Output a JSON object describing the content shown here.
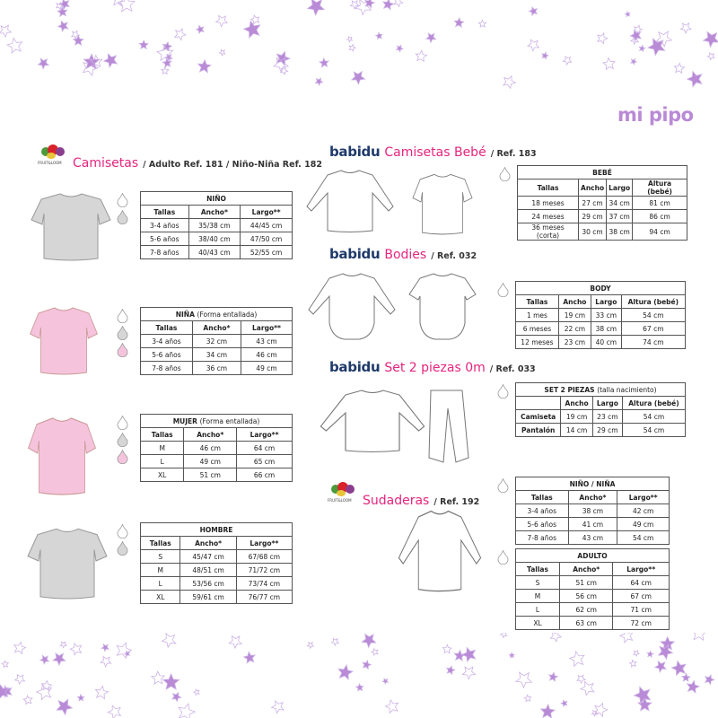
{
  "logo": "mi pipo",
  "colors": {
    "brand_pink": "#e6247e",
    "babidu_navy": "#1f3a6b",
    "star_purple": "#b98ad6",
    "shirt_gray": "#d6d6d6",
    "shirt_pink": "#f5c4dc"
  },
  "sections": {
    "camisetas": {
      "brand": "FRUIT&LOOM",
      "title": "Camisetas",
      "ref": "/ Adulto Ref. 181 / Niño-Niña Ref. 182"
    },
    "camisetas_bebe": {
      "brand": "babidu",
      "title": "Camisetas Bebé",
      "ref": "/ Ref. 183"
    },
    "bodies": {
      "brand": "babidu",
      "title": "Bodies",
      "ref": "/ Ref. 032"
    },
    "set": {
      "brand": "babidu",
      "title": "Set 2 piezas 0m",
      "ref": "/ Ref. 033"
    },
    "sudaderas": {
      "brand": "FRUIT&LOOM",
      "title": "Sudaderas",
      "ref": "/ Ref. 192"
    }
  },
  "tables": [
    {
      "id": "nino",
      "title": "NIÑO",
      "subtitle": "",
      "headers": [
        "Tallas",
        "Ancho*",
        "Largo**"
      ],
      "rows": [
        [
          "3-4 años",
          "35/38 cm",
          "44/45 cm"
        ],
        [
          "5-6 años",
          "38/40 cm",
          "47/50 cm"
        ],
        [
          "7-8 años",
          "40/43 cm",
          "52/55 cm"
        ]
      ],
      "colors": [
        "white",
        "gray"
      ]
    },
    {
      "id": "nina",
      "title": "NIÑA",
      "subtitle": "(Forma entallada)",
      "headers": [
        "Tallas",
        "Ancho*",
        "Largo**"
      ],
      "rows": [
        [
          "3-4 años",
          "32 cm",
          "43 cm"
        ],
        [
          "5-6 años",
          "34 cm",
          "46 cm"
        ],
        [
          "7-8 años",
          "36 cm",
          "49 cm"
        ]
      ],
      "colors": [
        "white",
        "gray",
        "pink"
      ]
    },
    {
      "id": "mujer",
      "title": "MUJER",
      "subtitle": "(Forma entallada)",
      "headers": [
        "Tallas",
        "Ancho*",
        "Largo**"
      ],
      "rows": [
        [
          "M",
          "46 cm",
          "64 cm"
        ],
        [
          "L",
          "49 cm",
          "65 cm"
        ],
        [
          "XL",
          "51 cm",
          "66 cm"
        ]
      ],
      "colors": [
        "white",
        "gray",
        "pink"
      ]
    },
    {
      "id": "hombre",
      "title": "HOMBRE",
      "subtitle": "",
      "headers": [
        "Tallas",
        "Ancho*",
        "Largo**"
      ],
      "rows": [
        [
          "S",
          "45/47 cm",
          "67/68 cm"
        ],
        [
          "M",
          "48/51 cm",
          "71/72 cm"
        ],
        [
          "L",
          "53/56 cm",
          "73/74 cm"
        ],
        [
          "XL",
          "59/61 cm",
          "76/77 cm"
        ]
      ],
      "colors": [
        "white",
        "gray"
      ]
    },
    {
      "id": "bebe",
      "title": "BEBÉ",
      "subtitle": "",
      "headers": [
        "Tallas",
        "Ancho",
        "Largo",
        "Altura (bebé)"
      ],
      "rows": [
        [
          "18 meses",
          "27 cm",
          "34 cm",
          "81 cm"
        ],
        [
          "24 meses",
          "29 cm",
          "37 cm",
          "86 cm"
        ],
        [
          "36 meses (corta)",
          "30 cm",
          "38 cm",
          "94 cm"
        ]
      ],
      "colors": [
        "white"
      ]
    },
    {
      "id": "body",
      "title": "BODY",
      "subtitle": "",
      "headers": [
        "Tallas",
        "Ancho",
        "Largo",
        "Altura (bebé)"
      ],
      "rows": [
        [
          "1 mes",
          "19 cm",
          "33 cm",
          "54 cm"
        ],
        [
          "6 meses",
          "22 cm",
          "38 cm",
          "67 cm"
        ],
        [
          "12 meses",
          "23 cm",
          "40 cm",
          "74 cm"
        ]
      ],
      "colors": [
        "white"
      ]
    },
    {
      "id": "set2",
      "title": "SET 2 PIEZAS",
      "subtitle": "(talla nacimiento)",
      "headers": [
        "",
        "Ancho",
        "Largo",
        "Altura (bebé)"
      ],
      "rows": [
        [
          "Camiseta",
          "19 cm",
          "23 cm",
          "54 cm"
        ],
        [
          "Pantalón",
          "14 cm",
          "29 cm",
          "54 cm"
        ]
      ],
      "colors": [
        "white"
      ]
    },
    {
      "id": "sud_nino",
      "title": "NIÑO / NIÑA",
      "subtitle": "",
      "headers": [
        "Tallas",
        "Ancho*",
        "Largo**"
      ],
      "rows": [
        [
          "3-4 años",
          "38 cm",
          "42 cm"
        ],
        [
          "5-6 años",
          "41 cm",
          "49 cm"
        ],
        [
          "7-8 años",
          "43 cm",
          "54 cm"
        ]
      ],
      "colors": [
        "white"
      ]
    },
    {
      "id": "sud_adulto",
      "title": "ADULTO",
      "subtitle": "",
      "headers": [
        "Tallas",
        "Ancho*",
        "Largo**"
      ],
      "rows": [
        [
          "S",
          "51 cm",
          "64 cm"
        ],
        [
          "M",
          "56 cm",
          "67 cm"
        ],
        [
          "L",
          "62 cm",
          "71 cm"
        ],
        [
          "XL",
          "63 cm",
          "72 cm"
        ]
      ],
      "colors": [
        "white"
      ]
    }
  ]
}
